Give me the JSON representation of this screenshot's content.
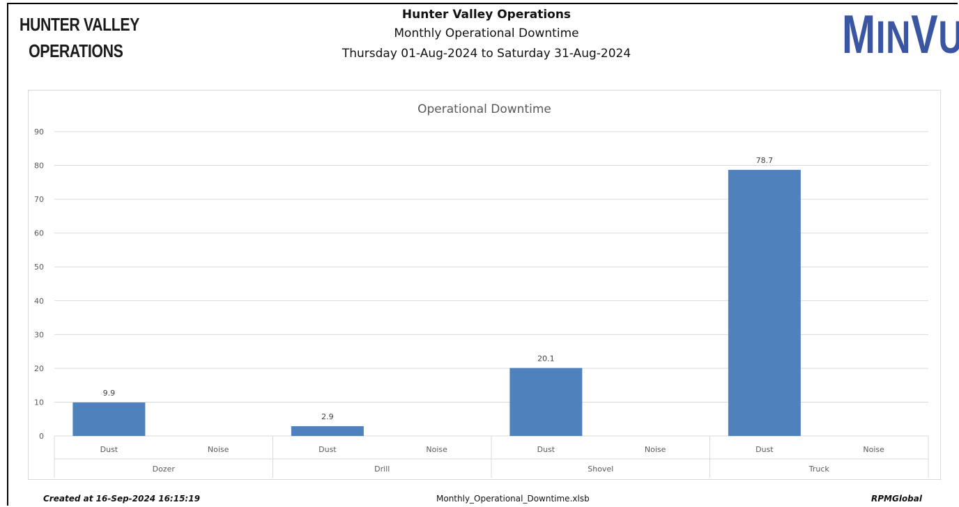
{
  "brand": {
    "left_logo_line1": "HUNTER VALLEY",
    "left_logo_line2": "OPERATIONS",
    "right_logo_big": "M",
    "right_logo_small": "IN",
    "right_logo_big2": "V",
    "right_logo_small2": "U"
  },
  "header": {
    "title": "Hunter Valley Operations",
    "subtitle": "Monthly Operational Downtime",
    "date_range": "Thursday 01-Aug-2024 to Saturday 31-Aug-2024"
  },
  "footer": {
    "created": "Created at 16-Sep-2024 16:15:19",
    "filename": "Monthly_Operational_Downtime.xlsb",
    "company": "RPMGlobal"
  },
  "colors": {
    "bar": "#4f81bd",
    "grid": "#d9d9d9",
    "axis_text": "#595959"
  },
  "chart_data": {
    "type": "bar",
    "title": "Operational Downtime",
    "xlabel": "",
    "ylabel": "",
    "ylim": [
      0,
      90
    ],
    "yticks": [
      0,
      10,
      20,
      30,
      40,
      50,
      60,
      70,
      80,
      90
    ],
    "grid": true,
    "groups": [
      {
        "name": "Dozer",
        "categories": [
          "Dust",
          "Noise"
        ],
        "values": [
          9.9,
          null
        ],
        "labels": [
          "9.9",
          ""
        ]
      },
      {
        "name": "Drill",
        "categories": [
          "Dust",
          "Noise"
        ],
        "values": [
          2.9,
          null
        ],
        "labels": [
          "2.9",
          ""
        ]
      },
      {
        "name": "Shovel",
        "categories": [
          "Dust",
          "Noise"
        ],
        "values": [
          20.1,
          null
        ],
        "labels": [
          "20.1",
          ""
        ]
      },
      {
        "name": "Truck",
        "categories": [
          "Dust",
          "Noise"
        ],
        "values": [
          78.7,
          null
        ],
        "labels": [
          "78.7",
          ""
        ]
      }
    ]
  }
}
